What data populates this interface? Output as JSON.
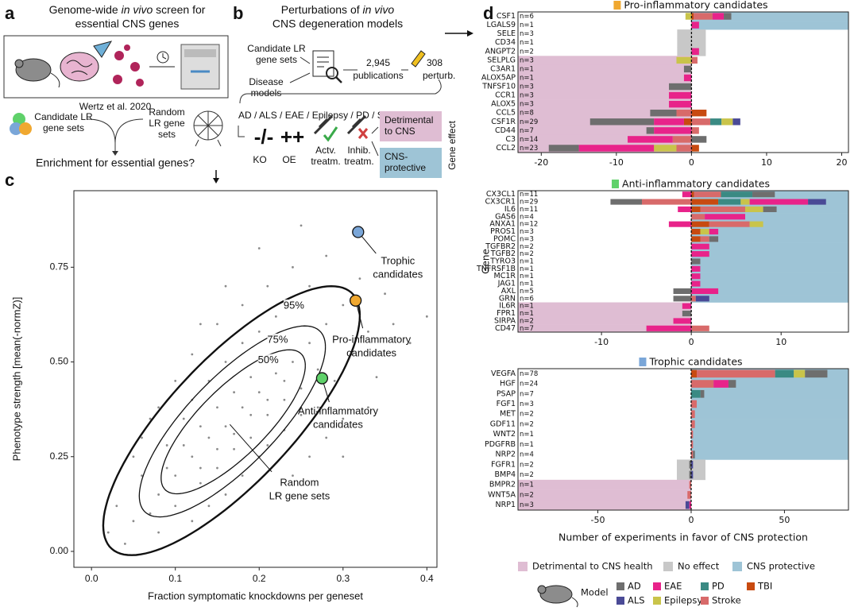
{
  "panel_a": {
    "label": "a",
    "title_line1": [
      "Genome-wide ",
      "in vivo",
      " screen for"
    ],
    "title_line2": "essential CNS genes",
    "citation": "Wertz et al. 2020",
    "candidate": [
      "Candidate LR",
      "gene sets"
    ],
    "random": [
      "Random",
      "LR gene",
      "sets"
    ],
    "question": "Enrichment for essential genes?"
  },
  "panel_b": {
    "label": "b",
    "title_line1": [
      "Perturbations of ",
      "in vivo"
    ],
    "title_line2": "CNS degeneration models",
    "candidate": [
      "Candidate LR",
      "gene sets"
    ],
    "disease": [
      "Disease",
      "models"
    ],
    "publications": [
      "2,945",
      "publications"
    ],
    "perturbations": [
      "308",
      "perturb."
    ],
    "models": "AD / ALS / EAE / Epilepsy / PD / Stroke / TBI",
    "ko_symbol": "-/-",
    "oe_symbol": "++",
    "ko": "KO",
    "oe": "OE",
    "activation": [
      "Actv.",
      "treatm."
    ],
    "inhibition": [
      "Inhib.",
      "treatm."
    ],
    "detrimental": [
      "Detrimental",
      "to CNS"
    ],
    "protective": [
      "CNS-",
      "protective"
    ],
    "effect_axis": "Gene effect"
  },
  "panel_c": {
    "label": "c"
  },
  "panel_d": {
    "label": "d"
  },
  "chart_data": [
    {
      "type": "scatter",
      "x_label": "Fraction symptomatic knockdowns per geneset",
      "y_label": "Phenotype strength [mean(-normZ)]",
      "xlim": [
        -0.021,
        0.412
      ],
      "ylim": [
        -0.042,
        0.952
      ],
      "xticks": [
        {
          "value": 0,
          "label": "0.0"
        },
        0.1,
        0.2,
        0.3,
        0.4
      ],
      "yticks": [
        {
          "value": 0,
          "label": "0.00"
        },
        {
          "value": 0.25,
          "label": "0.25"
        },
        {
          "value": 0.5,
          "label": "0.50"
        },
        {
          "value": 0.75,
          "label": "0.75"
        }
      ],
      "cloud_label": [
        "Random",
        "LR gene sets"
      ],
      "cloud_color": "#8a8a8a",
      "x": [
        0.05,
        0.08,
        0.1,
        0.12,
        0.14,
        0.16,
        0.18,
        0.2,
        0.22,
        0.24,
        0.26,
        0.28,
        0.3,
        0.09,
        0.11,
        0.13,
        0.15,
        0.17,
        0.19,
        0.21,
        0.23,
        0.25,
        0.27,
        0.07,
        0.06,
        0.1,
        0.12,
        0.14,
        0.16,
        0.18,
        0.2,
        0.22,
        0.24,
        0.26,
        0.15,
        0.17,
        0.19,
        0.13,
        0.11,
        0.09,
        0.21,
        0.23,
        0.25,
        0.27,
        0.29,
        0.31,
        0.33,
        0.18,
        0.16,
        0.2,
        0.14,
        0.12,
        0.08,
        0.04,
        0.03,
        0.02,
        0.06,
        0.08,
        0.1,
        0.12,
        0.15,
        0.18,
        0.21,
        0.24,
        0.28,
        0.32,
        0.35,
        0.36,
        0.38,
        0.4,
        0.34,
        0.3,
        0.28,
        0.26,
        0.24,
        0.22,
        0.3,
        0.33,
        0.05,
        0.07,
        0.13,
        0.16,
        0.2,
        0.25,
        0.19,
        0.17,
        0.15,
        0.13,
        0.21,
        0.23
      ],
      "y": [
        0.08,
        0.15,
        0.2,
        0.25,
        0.3,
        0.33,
        0.38,
        0.42,
        0.47,
        0.5,
        0.55,
        0.6,
        0.65,
        0.28,
        0.35,
        0.18,
        0.22,
        0.27,
        0.3,
        0.36,
        0.4,
        0.43,
        0.48,
        0.1,
        0.2,
        0.12,
        0.4,
        0.45,
        0.5,
        0.55,
        0.58,
        0.62,
        0.66,
        0.7,
        0.38,
        0.42,
        0.46,
        0.33,
        0.28,
        0.22,
        0.28,
        0.32,
        0.36,
        0.38,
        0.45,
        0.52,
        0.58,
        0.2,
        0.15,
        0.25,
        0.12,
        0.08,
        0.05,
        0.02,
        0.12,
        0.05,
        0.3,
        0.38,
        0.45,
        0.52,
        0.6,
        0.65,
        0.7,
        0.75,
        0.78,
        0.72,
        0.68,
        0.6,
        0.55,
        0.62,
        0.46,
        0.35,
        0.3,
        0.25,
        0.2,
        0.15,
        0.25,
        0.38,
        0.25,
        0.35,
        0.6,
        0.7,
        0.8,
        0.86,
        0.36,
        0.31,
        0.27,
        0.22,
        0.4,
        0.45
      ],
      "contours": [
        {
          "label": "95%",
          "x_center": 0.167,
          "y_center": 0.345,
          "x_halfwidth": 0.153,
          "y_halfheight": 0.355,
          "correlation": 0.78
        },
        {
          "label": "75%",
          "x_center": 0.168,
          "y_center": 0.343,
          "x_halfwidth": 0.111,
          "y_halfheight": 0.252,
          "correlation": 0.78
        },
        {
          "label": "50%",
          "x_center": 0.169,
          "y_center": 0.342,
          "x_halfwidth": 0.086,
          "y_halfheight": 0.19,
          "correlation": 0.78
        }
      ],
      "points": [
        {
          "label": [
            "Trophic",
            "candidates"
          ],
          "x": 0.318,
          "y": 0.843,
          "color": "#7aa6d8"
        },
        {
          "label": [
            "Pro-inflammatory",
            "candidates"
          ],
          "x": 0.315,
          "y": 0.662,
          "color": "#f0a830"
        },
        {
          "label": [
            "Anti-inflammatory",
            "candidates"
          ],
          "x": 0.275,
          "y": 0.457,
          "color": "#5fd16a"
        }
      ]
    },
    {
      "type": "bar",
      "orientation": "horizontal",
      "title": "Pro-inflammatory candidates",
      "title_color": "#f0a830",
      "categories": [
        "CSF1",
        "LGALS9",
        "SELE",
        "CD34",
        "ANGPT2",
        "SELPLG",
        "C3AR1",
        "ALOX5AP",
        "TNFSF10",
        "CCR1",
        "ALOX5",
        "CCL5",
        "CSF1R",
        "CD44",
        "C3",
        "CCL2"
      ],
      "n_labels": [
        "n=6",
        "n=1",
        "n=3",
        "n=1",
        "n=2",
        "n=3",
        "n=1",
        "n=1",
        "n=3",
        "n=3",
        "n=3",
        "n=8",
        "n=29",
        "n=7",
        "n=14",
        "n=23"
      ],
      "effect": [
        "CNS protective",
        "CNS protective",
        "No effect",
        "No effect",
        "No effect",
        "Detrimental to CNS health",
        "Detrimental to CNS health",
        "Detrimental to CNS health",
        "Detrimental to CNS health",
        "Detrimental to CNS health",
        "Detrimental to CNS health",
        "Detrimental to CNS health",
        "Detrimental to CNS health",
        "Detrimental to CNS health",
        "Detrimental to CNS health",
        "Detrimental to CNS health"
      ],
      "xlim": [
        -23.1,
        20.9
      ],
      "xticks": [
        -20,
        -10,
        0,
        10,
        20
      ],
      "series": [
        {
          "name": "AD",
          "color": "#6e6e6e",
          "values": [
            1,
            0,
            0,
            0,
            0,
            0,
            -1,
            0,
            -3,
            0,
            0,
            -3.5,
            -8.5,
            -1,
            2,
            -4
          ]
        },
        {
          "name": "ALS",
          "color": "#4a4a96",
          "values": [
            0,
            0,
            0,
            0,
            0,
            0,
            0,
            0,
            0,
            0,
            0,
            0,
            1,
            0,
            0,
            0
          ]
        },
        {
          "name": "EAE",
          "color": "#e8238a",
          "values": [
            1.5,
            1,
            0,
            0,
            1,
            0,
            0,
            -1,
            0,
            -3,
            -3,
            0,
            -4,
            -5,
            -6,
            -10
          ]
        },
        {
          "name": "Epilepsy",
          "color": "#c9c44a",
          "values": [
            -0.8,
            0,
            0,
            0,
            0,
            -2,
            0,
            0,
            0,
            0,
            0,
            0,
            1.5,
            0,
            0,
            -3
          ]
        },
        {
          "name": "PD",
          "color": "#3a8a83",
          "values": [
            0,
            0,
            0,
            0,
            0,
            0,
            0,
            0,
            0,
            0,
            0,
            0,
            1.5,
            0,
            0,
            0
          ]
        },
        {
          "name": "Stroke",
          "color": "#d86a6a",
          "values": [
            2.5,
            0,
            0,
            0,
            0,
            0.8,
            0,
            0,
            0,
            0,
            0,
            -2,
            2.5,
            1,
            -2.5,
            -2
          ]
        },
        {
          "name": "TBI",
          "color": "#c84a10",
          "values": [
            0.3,
            0,
            0,
            0,
            0,
            0,
            0,
            0,
            0,
            0,
            0,
            2,
            -1,
            0,
            0,
            1
          ]
        }
      ]
    },
    {
      "type": "bar",
      "orientation": "horizontal",
      "title": "Anti-inflammatory candidates",
      "title_color": "#5fd16a",
      "y_label": "Gene",
      "categories": [
        "CX3CL1",
        "CX3CR1",
        "IL6",
        "GAS6",
        "ANXA1",
        "PROS1",
        "POMC",
        "TGFBR2",
        "TGFB2",
        "TYRO3",
        "TNFRSF1B",
        "MC1R",
        "JAG1",
        "AXL",
        "GRN",
        "IL6R",
        "FPR1",
        "SIRPA",
        "CD47"
      ],
      "n_labels": [
        "n=11",
        "n=29",
        "n=11",
        "n=4",
        "n=12",
        "n=3",
        "n=3",
        "n=2",
        "n=2",
        "n=1",
        "n=1",
        "n=1",
        "n=1",
        "n=5",
        "n=6",
        "n=1",
        "n=1",
        "n=2",
        "n=7"
      ],
      "effect": [
        "CNS protective",
        "CNS protective",
        "CNS protective",
        "CNS protective",
        "CNS protective",
        "CNS protective",
        "CNS protective",
        "CNS protective",
        "CNS protective",
        "CNS protective",
        "CNS protective",
        "CNS protective",
        "CNS protective",
        "CNS protective",
        "CNS protective",
        "Detrimental to CNS health",
        "Detrimental to CNS health",
        "Detrimental to CNS health",
        "Detrimental to CNS health"
      ],
      "xlim": [
        -19.3,
        17.5
      ],
      "xticks": [
        -10,
        0,
        10
      ],
      "series": [
        {
          "name": "AD",
          "color": "#6e6e6e",
          "values": [
            2.5,
            -3.5,
            1.5,
            0,
            0,
            0,
            1,
            0,
            0,
            1,
            0,
            0,
            0,
            -2,
            -2,
            0,
            -1,
            0,
            0
          ]
        },
        {
          "name": "ALS",
          "color": "#4a4a96",
          "values": [
            0,
            2,
            0,
            0,
            0,
            0,
            0,
            0,
            0,
            0,
            0,
            0,
            0,
            0,
            1.5,
            0,
            0,
            0,
            0
          ]
        },
        {
          "name": "EAE",
          "color": "#e8238a",
          "values": [
            -1,
            6.5,
            -1.5,
            4.5,
            -2.5,
            1,
            0,
            2,
            2,
            0,
            1,
            1,
            1,
            3,
            0,
            -1,
            0,
            -2,
            -5
          ]
        },
        {
          "name": "Epilepsy",
          "color": "#c9c44a",
          "values": [
            0,
            1,
            2,
            0,
            1.5,
            1,
            0,
            0,
            0,
            0,
            0,
            0,
            0,
            0,
            0,
            0,
            0,
            0,
            0
          ]
        },
        {
          "name": "PD",
          "color": "#3a8a83",
          "values": [
            3.5,
            2.5,
            0,
            0,
            0,
            0,
            0,
            0,
            0,
            0,
            0,
            0,
            0,
            0,
            0,
            0,
            0,
            0,
            0
          ]
        },
        {
          "name": "Stroke",
          "color": "#d86a6a",
          "values": [
            3,
            -5.5,
            5,
            1.5,
            4.5,
            0,
            1,
            0,
            0,
            0,
            0,
            0,
            0,
            0,
            0.5,
            0,
            0,
            0,
            2
          ]
        },
        {
          "name": "TBI",
          "color": "#c84a10",
          "values": [
            0.3,
            3,
            1,
            0,
            2,
            1,
            1,
            0,
            0,
            0,
            0,
            0,
            0,
            0,
            0,
            0,
            0,
            0,
            0
          ]
        }
      ]
    },
    {
      "type": "bar",
      "orientation": "horizontal",
      "title": "Trophic candidates",
      "title_color": "#7aa6d8",
      "x_label": "Number of experiments in favor of CNS protection",
      "categories": [
        "VEGFA",
        "HGF",
        "PSAP",
        "FGF1",
        "MET",
        "GDF11",
        "WNT2",
        "PDGFRB",
        "NRP2",
        "FGFR1",
        "BMP4",
        "BMPR2",
        "WNT5A",
        "NRP1"
      ],
      "n_labels": [
        "n=78",
        "n=24",
        "n=7",
        "n=3",
        "n=2",
        "n=2",
        "n=1",
        "n=1",
        "n=4",
        "n=2",
        "n=2",
        "n=1",
        "n=2",
        "n=3"
      ],
      "effect": [
        "CNS protective",
        "CNS protective",
        "CNS protective",
        "CNS protective",
        "CNS protective",
        "CNS protective",
        "CNS protective",
        "CNS protective",
        "CNS protective",
        "No effect",
        "No effect",
        "Detrimental to CNS health",
        "Detrimental to CNS health",
        "Detrimental to CNS health"
      ],
      "xlim": [
        -92.8,
        84.3
      ],
      "xticks": [
        -50,
        0,
        50
      ],
      "series": [
        {
          "name": "AD",
          "color": "#6e6e6e",
          "values": [
            12,
            4,
            2,
            0,
            0,
            0,
            0,
            0,
            1,
            -1,
            -1,
            0,
            0,
            0
          ]
        },
        {
          "name": "ALS",
          "color": "#4a4a96",
          "values": [
            0,
            0,
            0,
            0,
            0,
            0,
            0,
            0,
            0,
            1,
            1,
            0,
            0,
            -2
          ]
        },
        {
          "name": "EAE",
          "color": "#e8238a",
          "values": [
            0,
            8,
            0,
            0,
            0,
            0,
            0,
            0,
            0,
            0,
            0,
            0,
            0,
            -1
          ]
        },
        {
          "name": "Epilepsy",
          "color": "#c9c44a",
          "values": [
            6,
            0,
            0,
            0,
            0,
            0,
            0,
            0,
            0,
            0,
            0,
            0,
            0,
            0
          ]
        },
        {
          "name": "PD",
          "color": "#3a8a83",
          "values": [
            10,
            0,
            5,
            0,
            0,
            0,
            0,
            0,
            0,
            0,
            0,
            0,
            0,
            0
          ]
        },
        {
          "name": "Stroke",
          "color": "#d86a6a",
          "values": [
            42,
            12,
            0,
            3,
            2,
            2,
            1,
            1,
            1,
            0,
            0,
            -1,
            -2,
            0
          ]
        },
        {
          "name": "TBI",
          "color": "#c84a10",
          "values": [
            3,
            0,
            0,
            0,
            0,
            0,
            0,
            0,
            0,
            0,
            0,
            0,
            0,
            0
          ]
        }
      ]
    }
  ],
  "d_legend": {
    "effects": [
      {
        "name": "Detrimental to CNS health",
        "color": "#dfbdd3"
      },
      {
        "name": "No effect",
        "color": "#c8c8c8"
      },
      {
        "name": "CNS protective",
        "color": "#9ec4d6"
      }
    ],
    "model_title": "Model"
  }
}
